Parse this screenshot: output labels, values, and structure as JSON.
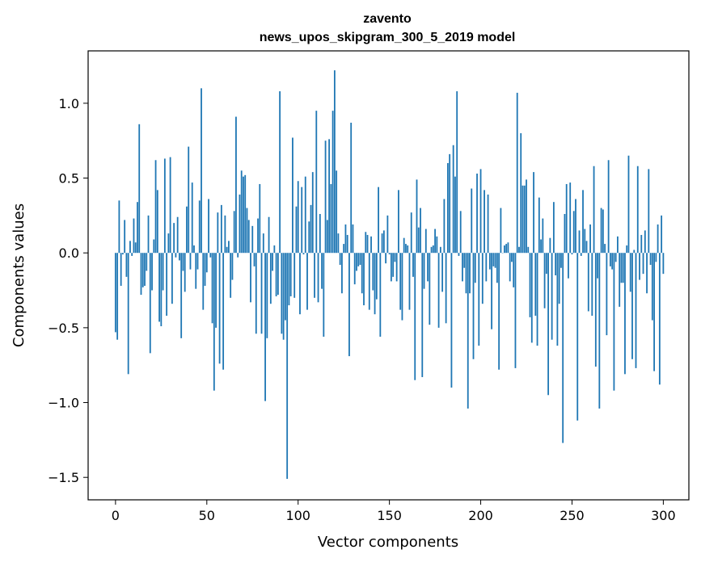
{
  "chart_data": {
    "type": "bar",
    "title_lines": [
      "zavento",
      "news_upos_skipgram_300_5_2019 model"
    ],
    "xlabel": "Vector components",
    "ylabel": "Components values",
    "xlim": [
      -15,
      314
    ],
    "ylim": [
      -1.65,
      1.35
    ],
    "xticks": [
      0,
      50,
      100,
      150,
      200,
      250,
      300
    ],
    "yticks": [
      -1.5,
      -1.0,
      -0.5,
      0.0,
      0.5,
      1.0
    ],
    "ytick_labels": [
      "−1.5",
      "−1.0",
      "−0.5",
      "0.0",
      "0.5",
      "1.0"
    ],
    "bar_color": "#1f77b4",
    "grid": false,
    "values": [
      -0.53,
      -0.58,
      0.35,
      -0.22,
      -0.01,
      0.22,
      -0.16,
      -0.81,
      0.08,
      -0.02,
      0.23,
      0.07,
      0.34,
      0.86,
      -0.28,
      -0.23,
      -0.22,
      -0.12,
      0.25,
      -0.67,
      -0.25,
      0.09,
      0.62,
      0.42,
      -0.46,
      -0.49,
      -0.25,
      0.63,
      -0.42,
      0.13,
      0.64,
      -0.34,
      0.2,
      -0.03,
      0.24,
      -0.05,
      -0.57,
      -0.12,
      -0.26,
      0.31,
      0.71,
      -0.11,
      0.47,
      0.05,
      -0.24,
      -0.11,
      0.35,
      1.1,
      -0.38,
      -0.22,
      -0.13,
      0.36,
      -0.03,
      -0.47,
      -0.92,
      -0.5,
      0.27,
      -0.74,
      0.32,
      -0.78,
      0.25,
      0.04,
      0.08,
      -0.3,
      -0.18,
      0.28,
      0.91,
      -0.03,
      0.39,
      0.55,
      0.51,
      0.52,
      0.3,
      0.22,
      -0.33,
      0.18,
      -0.09,
      -0.54,
      0.23,
      0.46,
      -0.54,
      0.13,
      -0.99,
      -0.57,
      0.24,
      -0.34,
      -0.12,
      0.05,
      -0.29,
      -0.28,
      1.08,
      -0.54,
      -0.58,
      -0.45,
      -1.51,
      -0.35,
      -0.29,
      0.77,
      -0.3,
      0.31,
      0.48,
      -0.41,
      0.44,
      -0.01,
      0.51,
      -0.38,
      0.21,
      0.32,
      0.54,
      -0.3,
      0.95,
      -0.33,
      0.26,
      -0.24,
      -0.56,
      0.75,
      0.22,
      0.76,
      0.46,
      0.95,
      1.22,
      0.55,
      0.13,
      -0.08,
      -0.27,
      0.06,
      0.19,
      0.12,
      -0.69,
      0.87,
      0.19,
      -0.21,
      -0.12,
      -0.09,
      -0.08,
      -0.27,
      -0.35,
      0.14,
      0.12,
      -0.38,
      0.11,
      -0.25,
      -0.41,
      -0.31,
      0.44,
      -0.56,
      0.13,
      0.15,
      -0.07,
      0.25,
      -0.01,
      -0.19,
      -0.16,
      -0.06,
      -0.19,
      0.42,
      -0.38,
      -0.45,
      0.1,
      0.06,
      0.05,
      -0.38,
      0.27,
      -0.16,
      -0.85,
      0.49,
      0.17,
      0.3,
      -0.83,
      -0.24,
      0.16,
      -0.19,
      -0.48,
      0.04,
      0.05,
      0.16,
      0.11,
      -0.5,
      0.04,
      -0.26,
      0.36,
      -0.47,
      0.6,
      0.66,
      -0.9,
      0.72,
      0.51,
      1.08,
      -0.02,
      0.28,
      -0.19,
      -0.1,
      -0.27,
      -1.04,
      -0.27,
      0.43,
      -0.71,
      -0.2,
      0.53,
      -0.62,
      0.56,
      -0.34,
      0.42,
      -0.19,
      0.39,
      -0.11,
      -0.51,
      -0.09,
      -0.1,
      -0.2,
      -0.78,
      0.3,
      0.0,
      0.05,
      0.06,
      0.07,
      -0.19,
      -0.06,
      -0.23,
      -0.77,
      1.07,
      0.04,
      0.8,
      0.45,
      0.45,
      0.49,
      0.04,
      -0.43,
      -0.6,
      0.54,
      -0.42,
      -0.62,
      0.37,
      0.09,
      0.23,
      -0.37,
      -0.14,
      -0.95,
      0.1,
      -0.58,
      0.34,
      -0.15,
      -0.62,
      -0.34,
      -0.1,
      -1.27,
      0.26,
      0.46,
      -0.17,
      0.47,
      -0.01,
      0.28,
      0.36,
      -1.12,
      0.15,
      -0.02,
      0.42,
      0.16,
      0.08,
      -0.39,
      0.19,
      -0.42,
      0.58,
      -0.76,
      -0.17,
      -1.04,
      0.3,
      0.29,
      0.06,
      -0.55,
      0.62,
      -0.09,
      -0.11,
      -0.92,
      -0.06,
      0.11,
      -0.36,
      -0.2,
      -0.2,
      -0.81,
      0.05,
      0.65,
      -0.26,
      -0.71,
      0.02,
      -0.77,
      0.58,
      -0.18,
      0.12,
      -0.14,
      0.15,
      -0.27,
      0.56,
      -0.08,
      -0.45,
      -0.79,
      -0.06,
      0.19,
      -0.88,
      0.25,
      -0.14
    ]
  }
}
